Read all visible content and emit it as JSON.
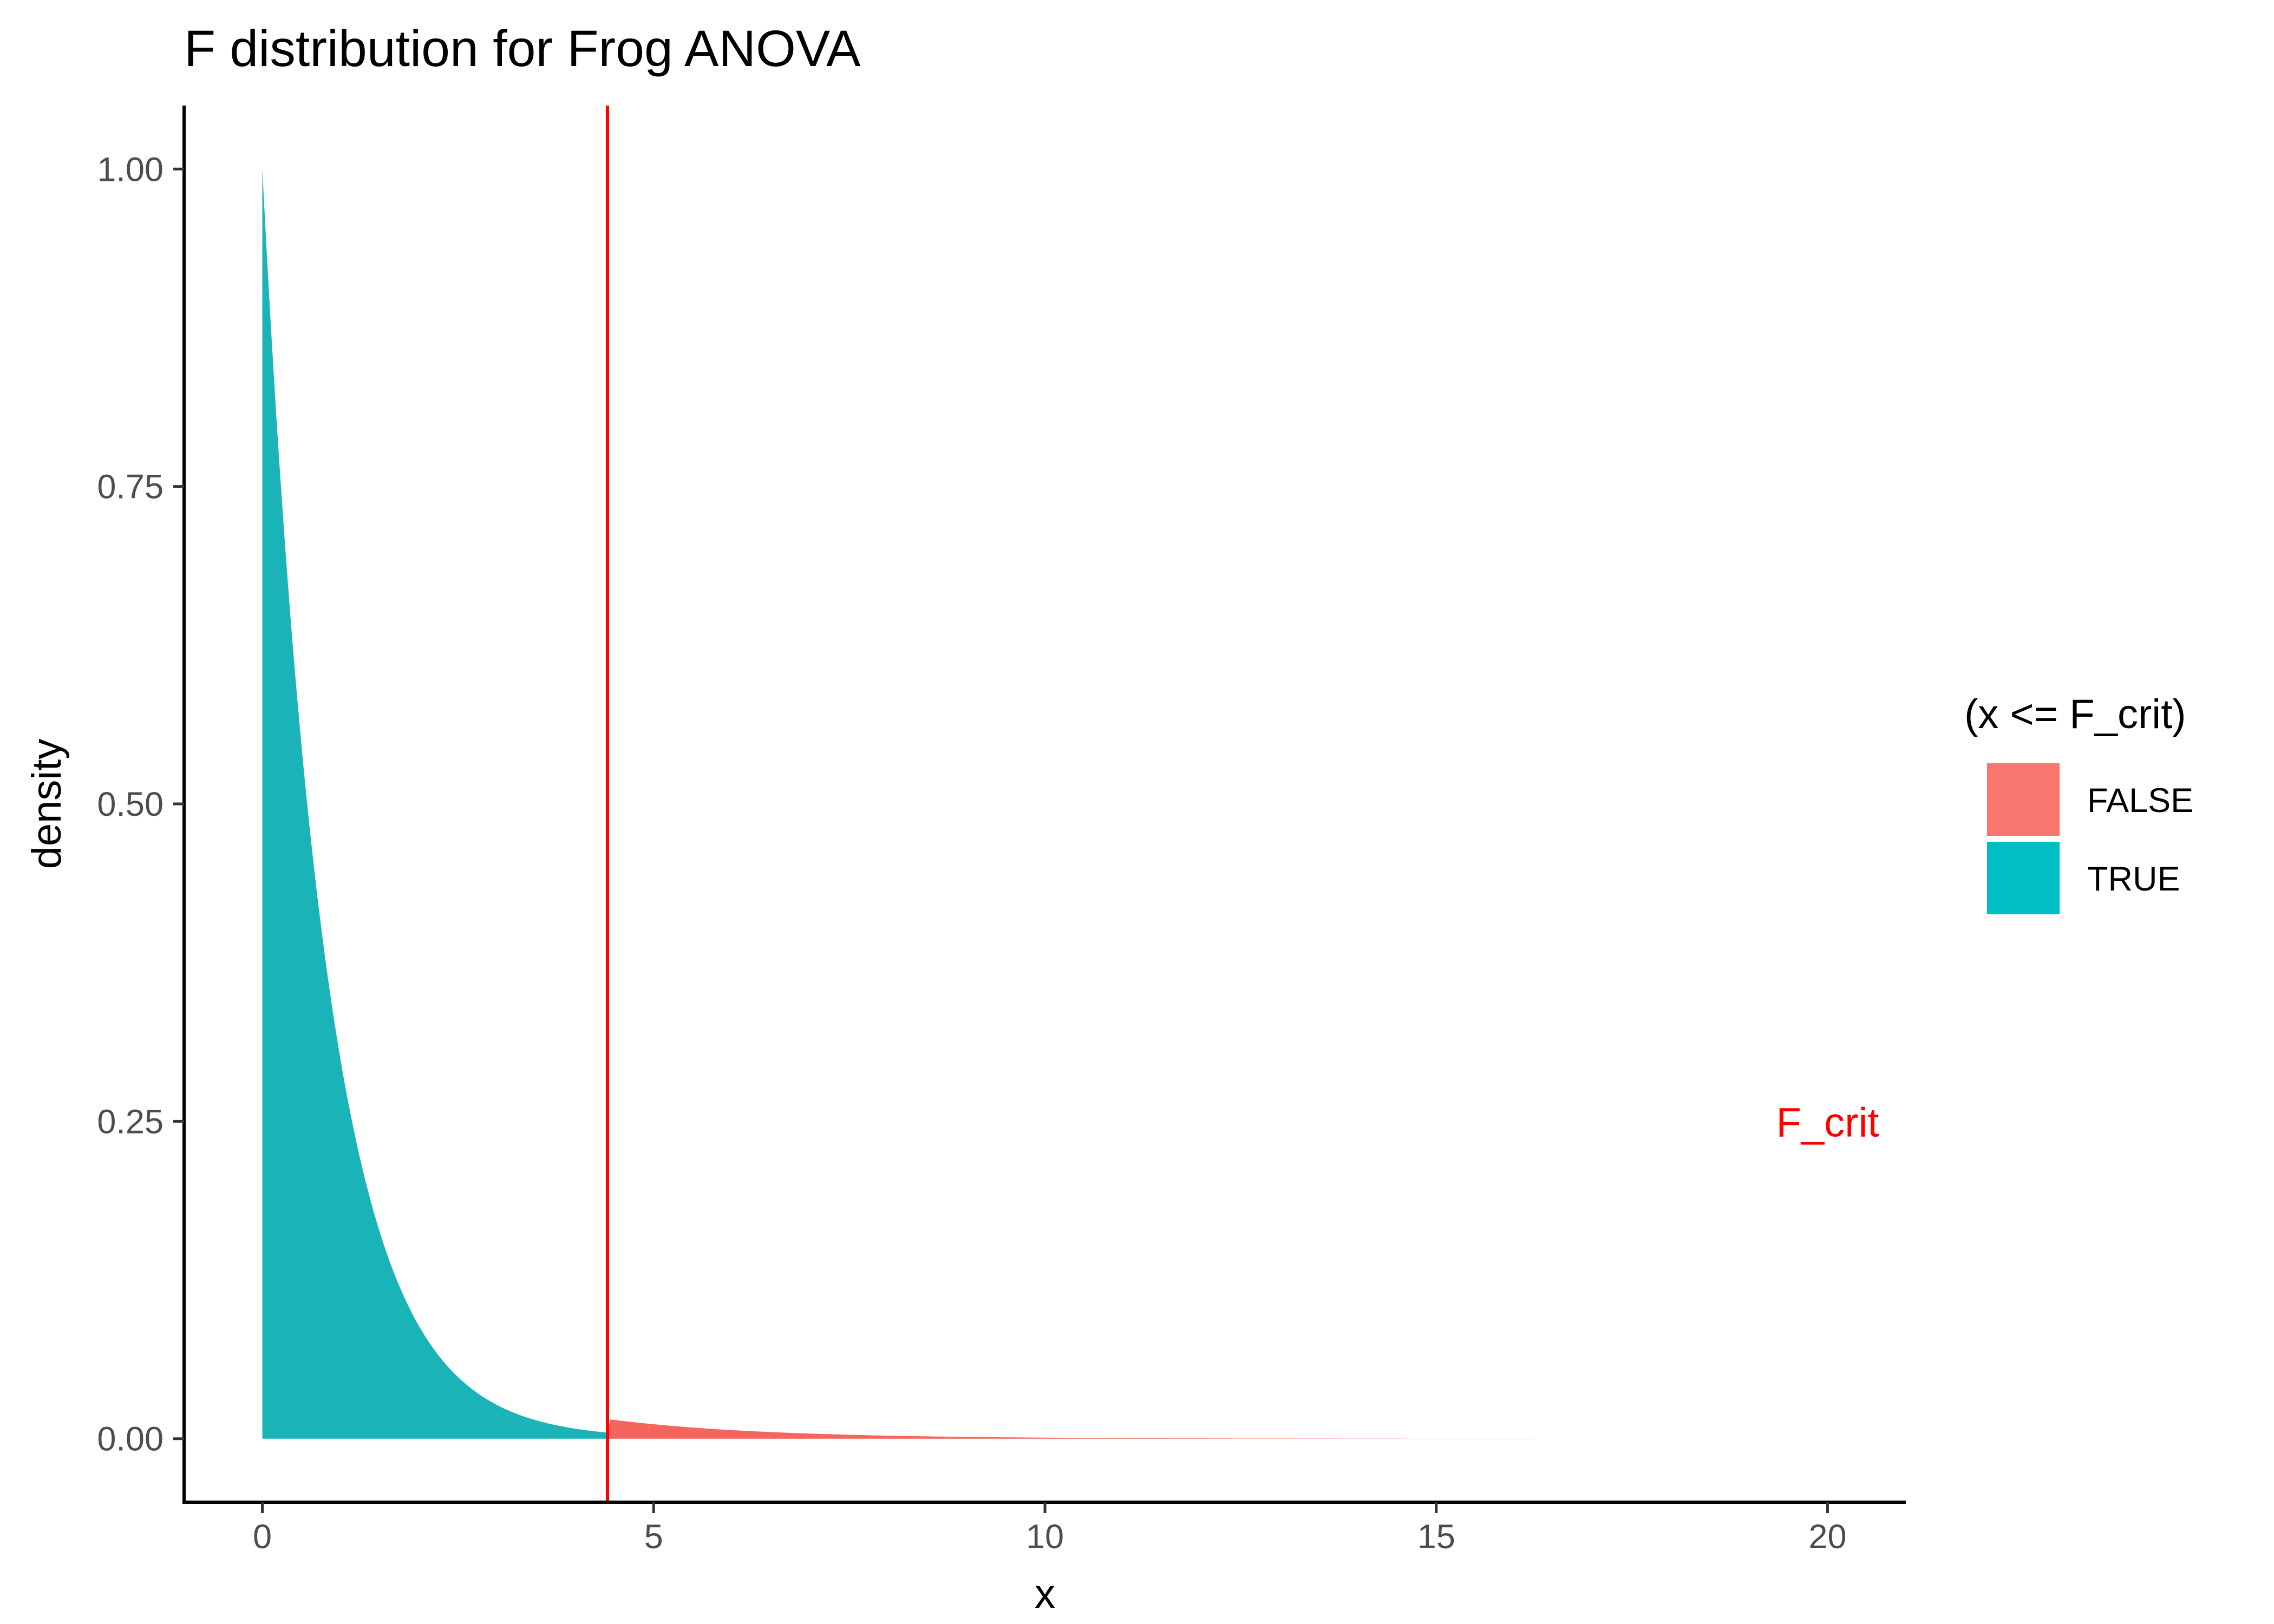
{
  "chart_data": {
    "type": "area",
    "title": "F distribution for Frog ANOVA",
    "xlabel": "x",
    "ylabel": "density",
    "xlim": [
      -1,
      21
    ],
    "ylim": [
      -0.05,
      1.05
    ],
    "x_ticks": [
      0,
      5,
      10,
      15,
      20
    ],
    "x_tick_labels": [
      "0",
      "5",
      "10",
      "15",
      "20"
    ],
    "y_ticks": [
      0,
      0.25,
      0.5,
      0.75,
      1
    ],
    "y_tick_labels": [
      "0.00",
      "0.25",
      "0.50",
      "0.75",
      "1.00"
    ],
    "grid": false,
    "f_crit": 4.41,
    "x_max": 20,
    "x": [
      0,
      0.5,
      1,
      1.5,
      2,
      2.5,
      3,
      3.5,
      4,
      4.41,
      4.5,
      5,
      6,
      7,
      8,
      9,
      10,
      11,
      12,
      13,
      14,
      15,
      16,
      17,
      18,
      19,
      20
    ],
    "density": [
      1.0,
      0.544,
      0.296,
      0.161,
      0.088,
      0.048,
      0.026,
      0.014,
      0.0077,
      0.0155,
      0.0145,
      0.0108,
      0.0063,
      0.0037,
      0.0022,
      0.0013,
      0.0008,
      0.0005,
      0.0003,
      0.0002,
      0.00012,
      8e-05,
      5e-05,
      3e-05,
      2e-05,
      1e-05,
      1e-05
    ],
    "legend": {
      "title": "(x <= F_crit)",
      "position": "right",
      "entries": [
        {
          "label": "FALSE",
          "color": "#F8766D"
        },
        {
          "label": "TRUE",
          "color": "#00BFC4"
        }
      ]
    },
    "annotation": {
      "text": "F_crit",
      "x": 20,
      "y": 0.25,
      "color": "#FF0000"
    },
    "vline": {
      "x": 4.41,
      "color": "#FF0000"
    },
    "colors": {
      "true_fill": "#1AB4B8",
      "false_fill": "#F5645D",
      "axis": "#000000",
      "tick_text": "#4d4d4d"
    }
  }
}
